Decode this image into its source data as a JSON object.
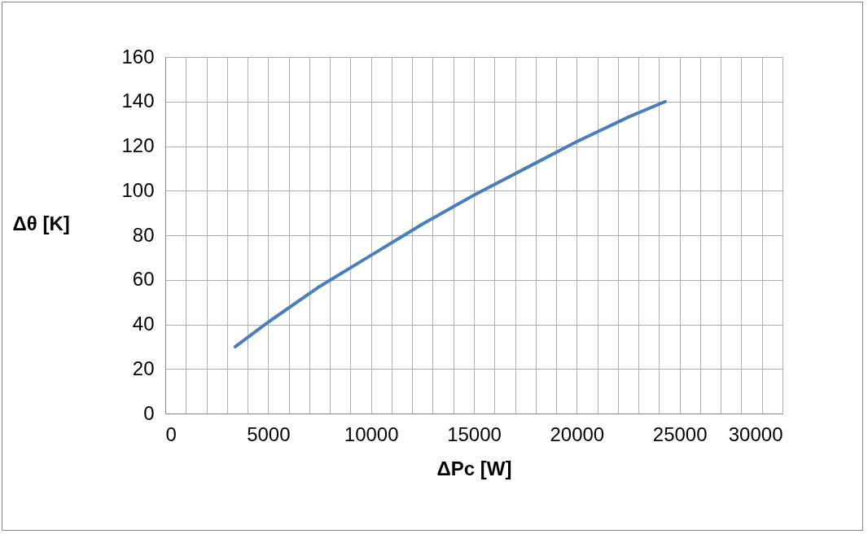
{
  "chart_data": {
    "type": "line",
    "xlabel": "ΔPc [W]",
    "ylabel": "Δθ [K]",
    "x": [
      3400,
      5000,
      7500,
      10000,
      12500,
      15000,
      17500,
      20000,
      22500,
      24300
    ],
    "series": [
      {
        "color": "#4a7ebb",
        "values": [
          30,
          41,
          57,
          71,
          85,
          98,
          110,
          122,
          133,
          140
        ]
      }
    ],
    "xlim": [
      0,
      30000
    ],
    "xticks": [
      0,
      {
        "value": 1000,
        "label": null
      },
      {
        "value": 2000,
        "label": null
      },
      {
        "value": 3000,
        "label": null
      },
      {
        "value": 4000,
        "label": null
      },
      5000,
      {
        "value": 6000,
        "label": null
      },
      {
        "value": 7000,
        "label": null
      },
      {
        "value": 8000,
        "label": null
      },
      {
        "value": 9000,
        "label": null
      },
      10000,
      {
        "value": 11000,
        "label": null
      },
      {
        "value": 12000,
        "label": null
      },
      {
        "value": 13000,
        "label": null
      },
      {
        "value": 14000,
        "label": null
      },
      15000,
      {
        "value": 16000,
        "label": null
      },
      {
        "value": 17000,
        "label": null
      },
      {
        "value": 18000,
        "label": null
      },
      {
        "value": 19000,
        "label": null
      },
      20000,
      {
        "value": 21000,
        "label": null
      },
      {
        "value": 22000,
        "label": null
      },
      {
        "value": 23000,
        "label": null
      },
      {
        "value": 24000,
        "label": null
      },
      25000,
      {
        "value": 26000,
        "label": null
      },
      {
        "value": 27000,
        "label": null
      },
      {
        "value": 28000,
        "label": null
      },
      {
        "value": 29000,
        "label": null
      },
      30000
    ],
    "ylim": [
      0,
      160
    ],
    "yticks": [
      0,
      20,
      40,
      60,
      80,
      100,
      120,
      140,
      160
    ],
    "grid": true,
    "marker": "none",
    "line_style": "solid"
  }
}
